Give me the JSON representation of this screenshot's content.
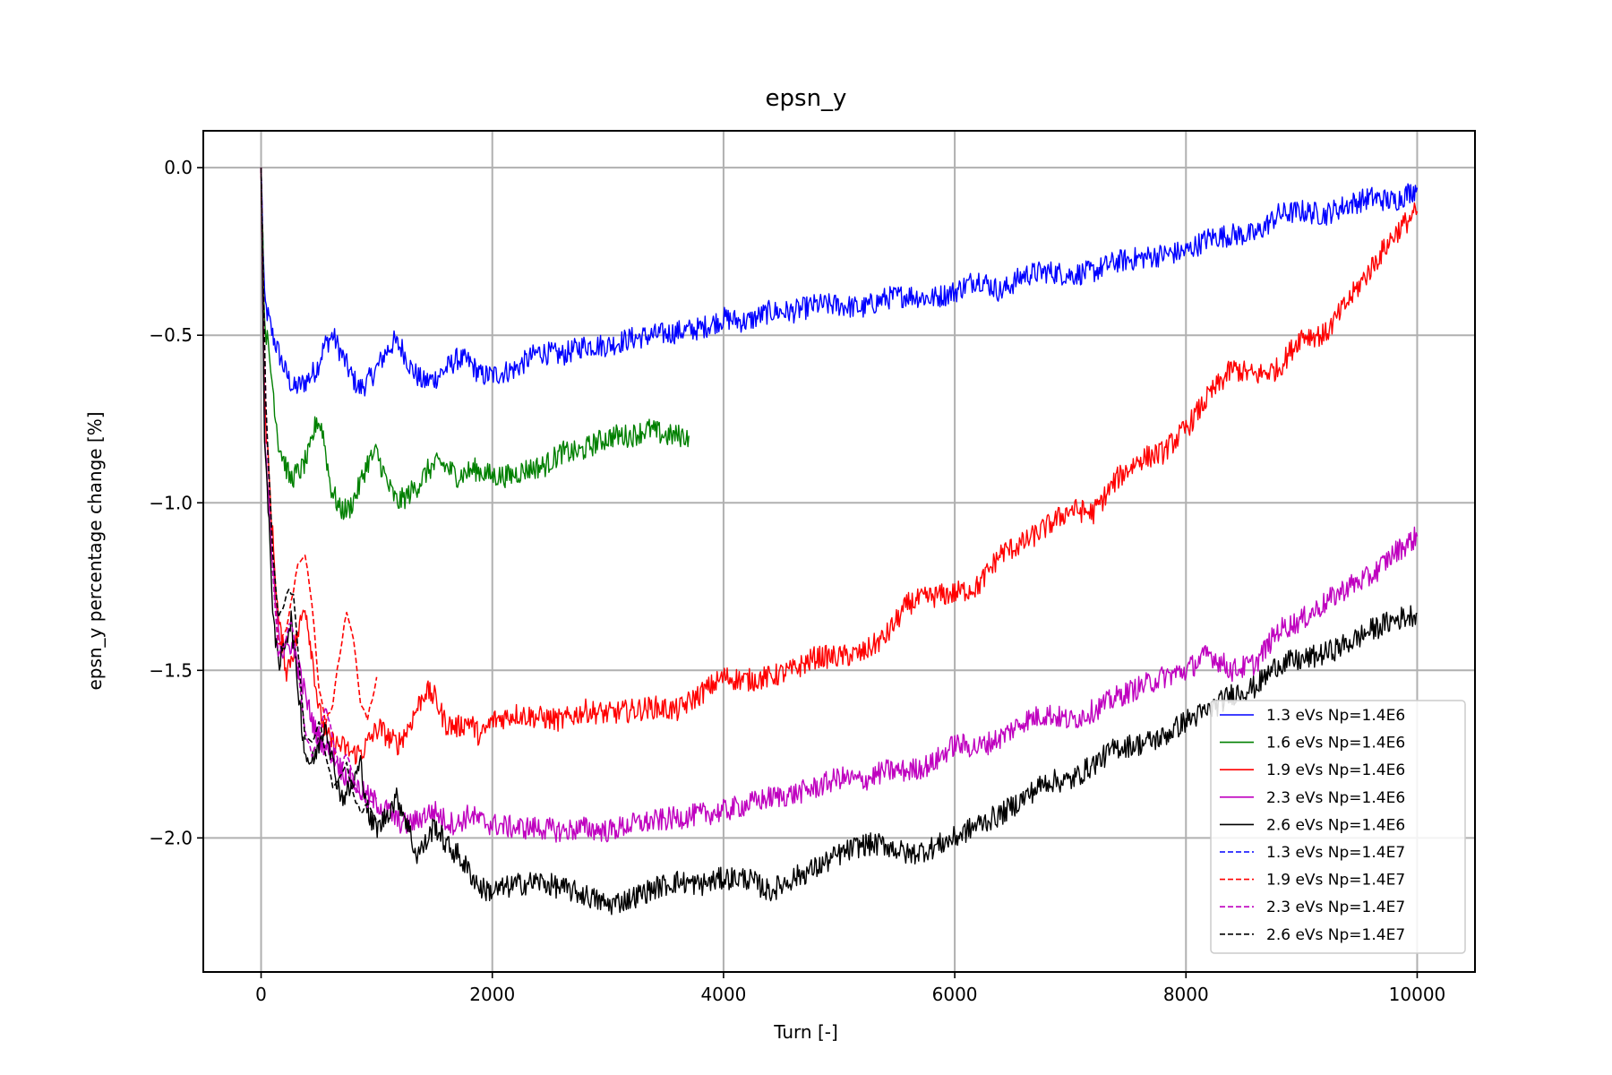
{
  "chart_data": {
    "type": "line",
    "title": "epsn_y",
    "xlabel": "Turn [-]",
    "ylabel": "epsn_y percentage change [%]",
    "xlim": [
      -500,
      10500
    ],
    "ylim": [
      -2.4,
      0.11
    ],
    "xticks": [
      0,
      2000,
      4000,
      6000,
      8000,
      10000
    ],
    "xtick_labels": [
      "0",
      "2000",
      "4000",
      "6000",
      "8000",
      "10000"
    ],
    "yticks": [
      0.0,
      -0.5,
      -1.0,
      -1.5,
      -2.0
    ],
    "ytick_labels": [
      "0.0",
      "−0.5",
      "−1.0",
      "−1.5",
      "−2.0"
    ],
    "grid": true,
    "legend_position": "lower-right",
    "series": [
      {
        "name": "1.3 eVs Np=1.4E6",
        "color": "#0000ff",
        "style": "solid",
        "x": [
          0,
          30,
          100,
          200,
          280,
          380,
          480,
          550,
          620,
          700,
          780,
          850,
          920,
          1000,
          1080,
          1150,
          1220,
          1300,
          1400,
          1500,
          1600,
          1700,
          1800,
          1900,
          2000,
          2200,
          2400,
          2600,
          2800,
          3000,
          3200,
          3400,
          3600,
          3800,
          4000,
          4200,
          4400,
          4600,
          4800,
          5000,
          5200,
          5400,
          5600,
          5800,
          6000,
          6200,
          6400,
          6600,
          6800,
          7000,
          7200,
          7400,
          7600,
          7800,
          8000,
          8200,
          8400,
          8600,
          8800,
          9000,
          9200,
          9400,
          9600,
          9800,
          10000
        ],
        "y": [
          0.0,
          -0.4,
          -0.5,
          -0.6,
          -0.66,
          -0.64,
          -0.6,
          -0.53,
          -0.5,
          -0.56,
          -0.62,
          -0.66,
          -0.64,
          -0.6,
          -0.55,
          -0.52,
          -0.54,
          -0.6,
          -0.64,
          -0.63,
          -0.6,
          -0.57,
          -0.58,
          -0.62,
          -0.62,
          -0.6,
          -0.55,
          -0.56,
          -0.53,
          -0.53,
          -0.51,
          -0.5,
          -0.49,
          -0.48,
          -0.45,
          -0.46,
          -0.43,
          -0.43,
          -0.41,
          -0.41,
          -0.42,
          -0.39,
          -0.38,
          -0.39,
          -0.37,
          -0.33,
          -0.37,
          -0.32,
          -0.31,
          -0.32,
          -0.31,
          -0.28,
          -0.27,
          -0.26,
          -0.25,
          -0.21,
          -0.2,
          -0.2,
          -0.14,
          -0.13,
          -0.14,
          -0.11,
          -0.09,
          -0.1,
          -0.06
        ]
      },
      {
        "name": "1.6 eVs Np=1.4E6",
        "color": "#008000",
        "style": "solid",
        "x": [
          0,
          30,
          100,
          150,
          250,
          350,
          420,
          480,
          530,
          600,
          680,
          760,
          840,
          920,
          1000,
          1100,
          1180,
          1260,
          1350,
          1450,
          1550,
          1700,
          1850,
          2000,
          2150,
          2300,
          2450,
          2600,
          2750,
          2900,
          3050,
          3200,
          3350,
          3500,
          3700
        ],
        "y": [
          0.0,
          -0.45,
          -0.65,
          -0.82,
          -0.93,
          -0.9,
          -0.85,
          -0.75,
          -0.78,
          -0.95,
          -1.02,
          -1.02,
          -0.96,
          -0.88,
          -0.85,
          -0.95,
          -1.0,
          -0.98,
          -0.95,
          -0.9,
          -0.88,
          -0.92,
          -0.9,
          -0.92,
          -0.92,
          -0.9,
          -0.89,
          -0.85,
          -0.85,
          -0.82,
          -0.8,
          -0.8,
          -0.78,
          -0.8,
          -0.8
        ]
      },
      {
        "name": "1.9 eVs Np=1.4E6",
        "color": "#ff0000",
        "style": "solid",
        "x": [
          0,
          30,
          100,
          150,
          220,
          300,
          380,
          440,
          500,
          570,
          640,
          720,
          800,
          880,
          950,
          1020,
          1100,
          1180,
          1260,
          1340,
          1420,
          1500,
          1600,
          1700,
          1800,
          1900,
          2000,
          2200,
          2400,
          2600,
          2800,
          3000,
          3200,
          3400,
          3600,
          3800,
          4000,
          4200,
          4400,
          4600,
          4800,
          5000,
          5200,
          5400,
          5600,
          5800,
          6000,
          6200,
          6400,
          6600,
          6800,
          7000,
          7200,
          7400,
          7600,
          7800,
          8000,
          8200,
          8400,
          8600,
          8800,
          9000,
          9200,
          9400,
          9600,
          9800,
          10000
        ],
        "y": [
          0.0,
          -0.7,
          -1.1,
          -1.35,
          -1.5,
          -1.42,
          -1.3,
          -1.45,
          -1.62,
          -1.7,
          -1.72,
          -1.73,
          -1.75,
          -1.74,
          -1.7,
          -1.67,
          -1.7,
          -1.72,
          -1.68,
          -1.62,
          -1.56,
          -1.58,
          -1.66,
          -1.67,
          -1.65,
          -1.7,
          -1.65,
          -1.63,
          -1.64,
          -1.65,
          -1.62,
          -1.63,
          -1.62,
          -1.61,
          -1.62,
          -1.57,
          -1.52,
          -1.53,
          -1.52,
          -1.5,
          -1.46,
          -1.46,
          -1.45,
          -1.4,
          -1.3,
          -1.28,
          -1.27,
          -1.25,
          -1.15,
          -1.12,
          -1.07,
          -1.02,
          -1.03,
          -0.93,
          -0.87,
          -0.85,
          -0.78,
          -0.68,
          -0.6,
          -0.62,
          -0.6,
          -0.5,
          -0.5,
          -0.4,
          -0.3,
          -0.2,
          -0.13
        ]
      },
      {
        "name": "2.3 eVs Np=1.4E6",
        "color": "#bf00bf",
        "style": "solid",
        "x": [
          0,
          30,
          100,
          180,
          260,
          330,
          400,
          470,
          540,
          620,
          700,
          780,
          860,
          940,
          1020,
          1100,
          1180,
          1260,
          1340,
          1420,
          1500,
          1600,
          1700,
          1800,
          1900,
          2000,
          2200,
          2400,
          2600,
          2800,
          3000,
          3200,
          3400,
          3600,
          3800,
          4000,
          4200,
          4400,
          4600,
          4800,
          5000,
          5200,
          5400,
          5600,
          5800,
          6000,
          6200,
          6400,
          6600,
          6800,
          7000,
          7200,
          7400,
          7600,
          7800,
          8000,
          8200,
          8400,
          8600,
          8800,
          9000,
          9200,
          9400,
          9600,
          9800,
          10000
        ],
        "y": [
          0.0,
          -0.8,
          -1.2,
          -1.45,
          -1.42,
          -1.5,
          -1.6,
          -1.68,
          -1.72,
          -1.75,
          -1.8,
          -1.83,
          -1.86,
          -1.88,
          -1.9,
          -1.92,
          -1.95,
          -1.96,
          -1.95,
          -1.93,
          -1.92,
          -1.95,
          -1.96,
          -1.93,
          -1.95,
          -1.96,
          -1.97,
          -1.97,
          -1.98,
          -1.97,
          -1.98,
          -1.96,
          -1.95,
          -1.94,
          -1.93,
          -1.92,
          -1.9,
          -1.88,
          -1.87,
          -1.85,
          -1.82,
          -1.83,
          -1.8,
          -1.8,
          -1.78,
          -1.72,
          -1.73,
          -1.7,
          -1.65,
          -1.63,
          -1.65,
          -1.62,
          -1.58,
          -1.55,
          -1.52,
          -1.5,
          -1.45,
          -1.5,
          -1.48,
          -1.38,
          -1.35,
          -1.3,
          -1.25,
          -1.22,
          -1.15,
          -1.1
        ]
      },
      {
        "name": "2.6 eVs Np=1.4E6",
        "color": "#000000",
        "style": "solid",
        "x": [
          0,
          30,
          100,
          150,
          200,
          260,
          320,
          380,
          440,
          500,
          560,
          620,
          700,
          780,
          860,
          940,
          1020,
          1100,
          1180,
          1260,
          1340,
          1420,
          1500,
          1600,
          1700,
          1800,
          1900,
          2000,
          2200,
          2400,
          2600,
          2800,
          3000,
          3200,
          3400,
          3600,
          3800,
          4000,
          4200,
          4400,
          4600,
          4800,
          5000,
          5200,
          5400,
          5600,
          5800,
          6000,
          6200,
          6400,
          6600,
          6800,
          7000,
          7200,
          7400,
          7600,
          7800,
          8000,
          8200,
          8400,
          8600,
          8800,
          9000,
          9200,
          9400,
          9600,
          9800,
          10000
        ],
        "y": [
          0.0,
          -0.8,
          -1.3,
          -1.5,
          -1.42,
          -1.35,
          -1.55,
          -1.75,
          -1.78,
          -1.72,
          -1.65,
          -1.78,
          -1.88,
          -1.85,
          -1.78,
          -1.95,
          -1.97,
          -1.92,
          -1.88,
          -1.95,
          -2.05,
          -2.02,
          -1.96,
          -2.02,
          -2.05,
          -2.1,
          -2.15,
          -2.16,
          -2.14,
          -2.13,
          -2.15,
          -2.17,
          -2.2,
          -2.18,
          -2.15,
          -2.13,
          -2.14,
          -2.12,
          -2.12,
          -2.16,
          -2.12,
          -2.09,
          -2.05,
          -2.02,
          -2.02,
          -2.05,
          -2.03,
          -2.0,
          -1.96,
          -1.93,
          -1.88,
          -1.83,
          -1.83,
          -1.78,
          -1.73,
          -1.72,
          -1.7,
          -1.65,
          -1.62,
          -1.57,
          -1.55,
          -1.48,
          -1.47,
          -1.45,
          -1.42,
          -1.38,
          -1.35,
          -1.33
        ]
      },
      {
        "name": "1.3 eVs Np=1.4E7",
        "color": "#0000ff",
        "style": "dashed",
        "x": [],
        "y": []
      },
      {
        "name": "1.9 eVs Np=1.4E7",
        "color": "#ff0000",
        "style": "dashed",
        "x": [
          0,
          40,
          100,
          150,
          200,
          260,
          320,
          380,
          440,
          500,
          560,
          620,
          680,
          740,
          800,
          860,
          920,
          1000
        ],
        "y": [
          0.0,
          -0.7,
          -1.2,
          -1.42,
          -1.4,
          -1.3,
          -1.18,
          -1.15,
          -1.3,
          -1.55,
          -1.65,
          -1.6,
          -1.45,
          -1.32,
          -1.4,
          -1.6,
          -1.65,
          -1.52
        ]
      },
      {
        "name": "2.3 eVs Np=1.4E7",
        "color": "#bf00bf",
        "style": "dashed",
        "x": [
          0,
          40,
          100,
          150,
          200,
          260,
          320,
          380,
          440,
          500,
          560,
          620,
          680,
          740,
          800,
          860,
          920,
          1000
        ],
        "y": [
          0.0,
          -0.7,
          -1.2,
          -1.45,
          -1.42,
          -1.35,
          -1.5,
          -1.68,
          -1.75,
          -1.7,
          -1.6,
          -1.7,
          -1.8,
          -1.75,
          -1.82,
          -1.88,
          -1.9,
          -1.88
        ]
      },
      {
        "name": "2.6 eVs Np=1.4E7",
        "color": "#000000",
        "style": "dashed",
        "x": [
          0,
          40,
          100,
          150,
          200,
          240,
          280,
          320,
          380,
          440,
          500,
          560,
          620,
          680,
          740,
          800,
          860,
          920,
          1000
        ],
        "y": [
          0.0,
          -0.7,
          -1.15,
          -1.35,
          -1.3,
          -1.25,
          -1.28,
          -1.45,
          -1.7,
          -1.72,
          -1.65,
          -1.75,
          -1.85,
          -1.82,
          -1.78,
          -1.88,
          -1.92,
          -1.9,
          -1.95
        ]
      }
    ]
  }
}
